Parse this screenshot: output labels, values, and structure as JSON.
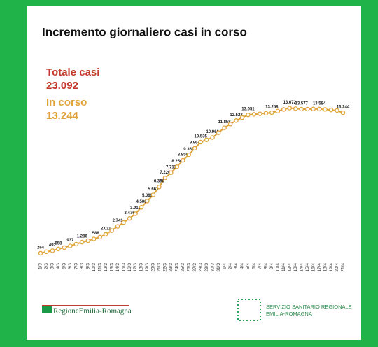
{
  "chart_data": {
    "type": "line",
    "title": "Incremento giornaliero casi in corso",
    "annotations": [
      {
        "label": "Totale casi",
        "value": "23.092",
        "color": "#c33a2c"
      },
      {
        "label": "In corso",
        "value": "13.244",
        "color": "#e0a43a"
      }
    ],
    "categories": [
      "1/3",
      "2/3",
      "3/3",
      "4/3",
      "5/3",
      "6/3",
      "7/3",
      "8/3",
      "9/3",
      "10/3",
      "11/3",
      "12/3",
      "13/3",
      "14/3",
      "15/3",
      "16/3",
      "17/3",
      "18/3",
      "19/3",
      "20/3",
      "21/3",
      "22/3",
      "23/3",
      "24/3",
      "25/3",
      "26/3",
      "27/3",
      "28/3",
      "29/3",
      "30/3",
      "31/3",
      "1/4",
      "2/4",
      "3/4",
      "4/4",
      "5/4",
      "6/4",
      "7/4",
      "8/4",
      "9/4",
      "10/4",
      "11/4",
      "12/4",
      "13/4",
      "14/4",
      "15/4",
      "16/4",
      "17/4",
      "18/4",
      "19/4",
      "20/4",
      "21/4"
    ],
    "series": [
      {
        "name": "In corso",
        "color": "#e0a43a",
        "values": [
          264,
          400,
          492,
          658,
          780,
          937,
          1100,
          1286,
          1420,
          1588,
          1750,
          2011,
          2350,
          2741,
          3100,
          3476,
          3912,
          4506,
          5089,
          5661,
          6390,
          7220,
          7711,
          8256,
          8850,
          9361,
          9964,
          10535,
          10750,
          10960,
          11400,
          11858,
          12200,
          12523,
          12800,
          13051,
          13100,
          13150,
          13200,
          13258,
          13400,
          13550,
          13672,
          13620,
          13577,
          13580,
          13590,
          13584,
          13550,
          13500,
          13450,
          13244
        ],
        "value_labels": [
          "264",
          null,
          "492",
          "658",
          null,
          "937",
          null,
          "1.286",
          null,
          "1.588",
          null,
          "2.011",
          null,
          "2.741",
          null,
          "3.476",
          "3.912",
          "4.506",
          "5.089",
          "5.661",
          "6.390",
          "7.220",
          "7.711",
          "8.256",
          "8.850",
          "9.361",
          "9.964",
          "10.535",
          null,
          "10.960",
          null,
          "11.858",
          null,
          "12.523",
          null,
          "13.051",
          null,
          null,
          null,
          "13.258",
          null,
          null,
          "13.672",
          null,
          "13.577",
          null,
          null,
          "13.584",
          null,
          null,
          null,
          "13.244"
        ]
      }
    ],
    "ylim": [
      0,
      15000
    ],
    "footer": {
      "left": "RegioneEmilia-Romagna",
      "right": [
        "SERVIZIO SANITARIO REGIONALE",
        "EMILIA-ROMAGNA"
      ]
    }
  }
}
